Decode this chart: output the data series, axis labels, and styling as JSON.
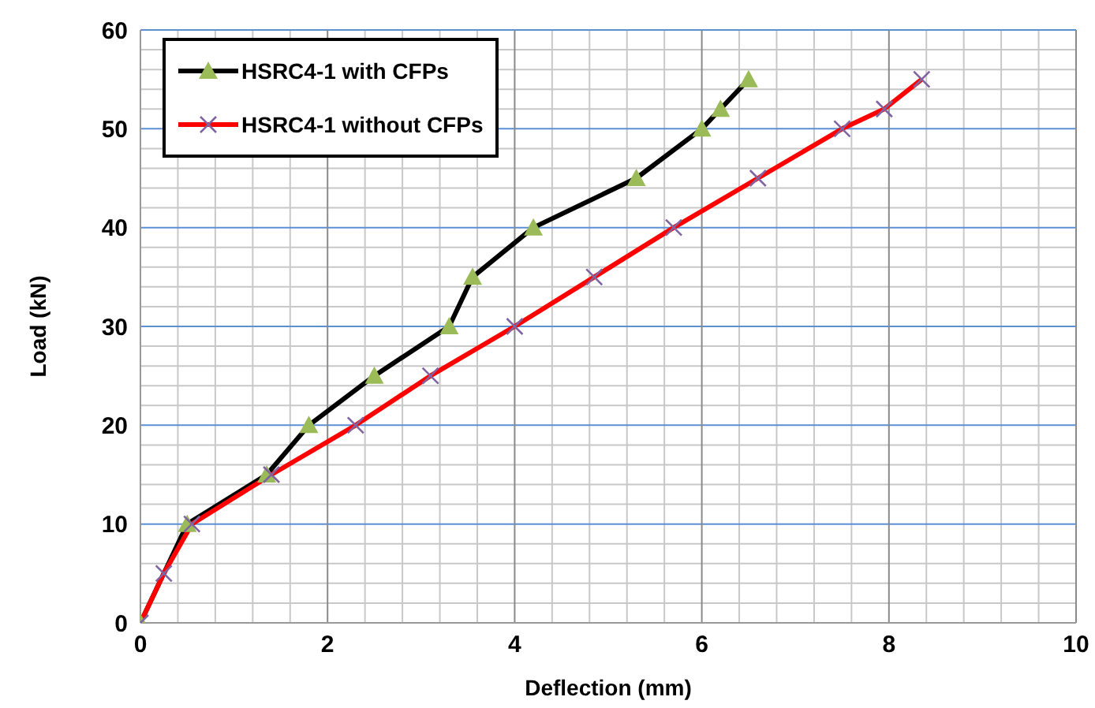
{
  "chart_data": {
    "type": "line",
    "xlabel": "Deflection (mm)",
    "ylabel": "Load  (kN)",
    "xlim": [
      0,
      10
    ],
    "xticks": [
      0,
      2,
      4,
      6,
      8,
      10
    ],
    "ylim": [
      0,
      60
    ],
    "yticks": [
      0,
      10,
      20,
      30,
      40,
      50,
      60
    ],
    "grid": true,
    "legend": "top left",
    "line_style": "solid",
    "series": [
      {
        "name": "HSRC4-1 with CFPs",
        "color": "#000000",
        "marker": "triangle",
        "x": [
          0,
          0.5,
          1.35,
          1.8,
          2.5,
          3.3,
          3.55,
          4.2,
          5.3,
          6.0,
          6.2,
          6.5
        ],
        "values": [
          0,
          10,
          15,
          20,
          25,
          30,
          35,
          40,
          45,
          50,
          52,
          55
        ]
      },
      {
        "name": "HSRC4-1 without CFPs",
        "color": "#ff0000",
        "marker": "cross",
        "x": [
          0,
          0.25,
          0.55,
          1.4,
          2.3,
          3.1,
          4.0,
          4.85,
          5.7,
          6.6,
          7.5,
          7.95,
          8.35
        ],
        "values": [
          0,
          5,
          10,
          15,
          20,
          25,
          30,
          35,
          40,
          45,
          50,
          52,
          55
        ]
      }
    ]
  }
}
